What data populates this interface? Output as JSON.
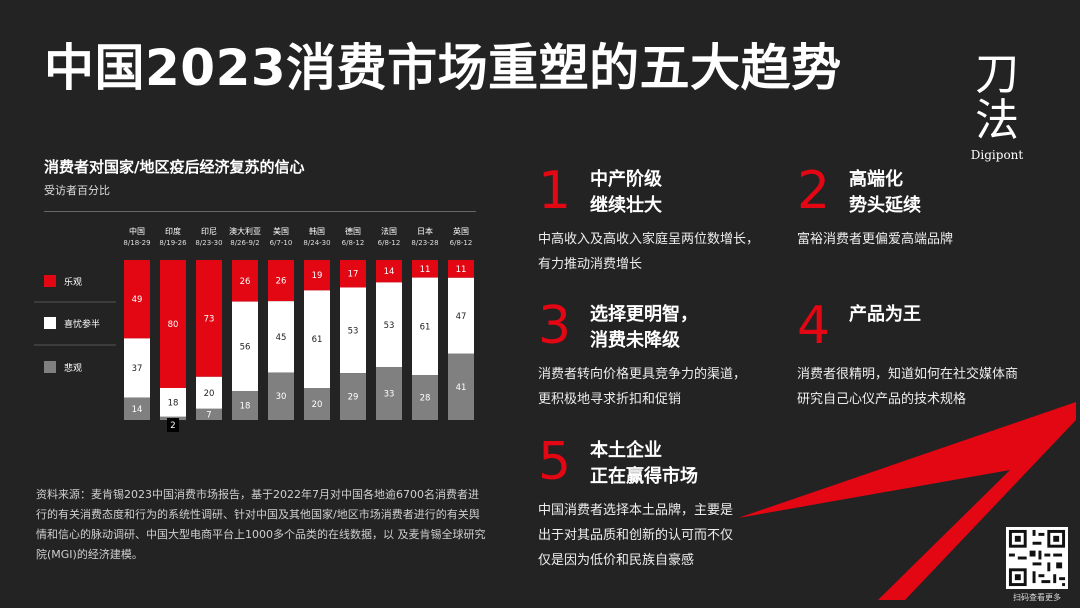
{
  "title": "中国2023消费市场重塑的五大趋势",
  "logo": {
    "cn_top": "刀",
    "cn_bottom": "法",
    "en": "Digipont"
  },
  "colors": {
    "optimistic": "#e30613",
    "uncertain": "#ffffff",
    "pessimistic": "#808080",
    "background": "#232323",
    "accent": "#e30613"
  },
  "chart_data": {
    "type": "bar",
    "stacked": true,
    "title": "消费者对国家/地区疫后经济复苏的信心",
    "subtitle": "受访者百分比",
    "categories": [
      "中国",
      "印度",
      "印尼",
      "澳大利亚",
      "美国",
      "韩国",
      "德国",
      "法国",
      "日本",
      "英国"
    ],
    "dates": [
      "8/18-29",
      "8/19-26",
      "8/23-30",
      "8/26-9/2",
      "6/7-10",
      "8/24-30",
      "6/8-12",
      "6/8-12",
      "8/23-28",
      "6/8-12"
    ],
    "series": [
      {
        "name": "悲观",
        "values": [
          14,
          2,
          7,
          18,
          30,
          20,
          29,
          33,
          28,
          41
        ]
      },
      {
        "name": "喜忧参半",
        "values": [
          37,
          18,
          20,
          56,
          45,
          61,
          53,
          53,
          61,
          47
        ]
      },
      {
        "name": "乐观",
        "values": [
          49,
          80,
          73,
          26,
          26,
          19,
          17,
          14,
          11,
          11
        ]
      }
    ],
    "labels": {
      "pessimistic": [
        "14",
        "2",
        "7",
        "18",
        "30",
        "20",
        "29",
        "33",
        "28",
        "41"
      ],
      "uncertain": [
        "37",
        "18",
        "20",
        "56",
        "45",
        "61",
        "53",
        "53",
        "61",
        "47"
      ],
      "optimistic": [
        "49",
        "80",
        "73",
        "26",
        "26",
        "19",
        "17",
        "14",
        "11",
        "11"
      ]
    },
    "legend": [
      "乐观",
      "喜忧参半",
      "悲观"
    ],
    "ylim": [
      0,
      100
    ],
    "legend_position": "left"
  },
  "source": "资料来源：麦肯锡2023中国消费市场报告，基于2022年7月对中国各地逾6700名消费者进行的有关消费态度和行为的系统性调研、针对中国及其他国家/地区市场消费者进行的有关舆情和信心的脉动调研、中国大型电商平台上1000多个品类的在线数据，以 及麦肯锡全球研究院(MGI)的经济建模。",
  "trends": [
    {
      "num": "1",
      "head1": "中产阶级",
      "head2": "继续壮大",
      "body1": "中高收入及高收入家庭呈两位数增长，",
      "body2": "有力推动消费增长"
    },
    {
      "num": "2",
      "head1": "高端化",
      "head2": "势头延续",
      "body1": "富裕消费者更偏爱高端品牌",
      "body2": ""
    },
    {
      "num": "3",
      "head1": "选择更明智，",
      "head2": "消费未降级",
      "body1": "消费者转向价格更具竞争力的渠道，",
      "body2": "更积极地寻求折扣和促销"
    },
    {
      "num": "4",
      "head1": "产品为王",
      "head2": "",
      "body1": "消费者很精明，知道如何在社交媒体商",
      "body2": "研究自己心仪产品的技术规格"
    },
    {
      "num": "5",
      "head1": "本土企业",
      "head2": "正在赢得市场",
      "body1": "中国消费者选择本土品牌，主要是",
      "body2": "出于对其品质和创新的认可而不仅",
      "body3": "仅是因为低价和民族自豪感"
    }
  ],
  "qr_caption": "扫码查看更多"
}
